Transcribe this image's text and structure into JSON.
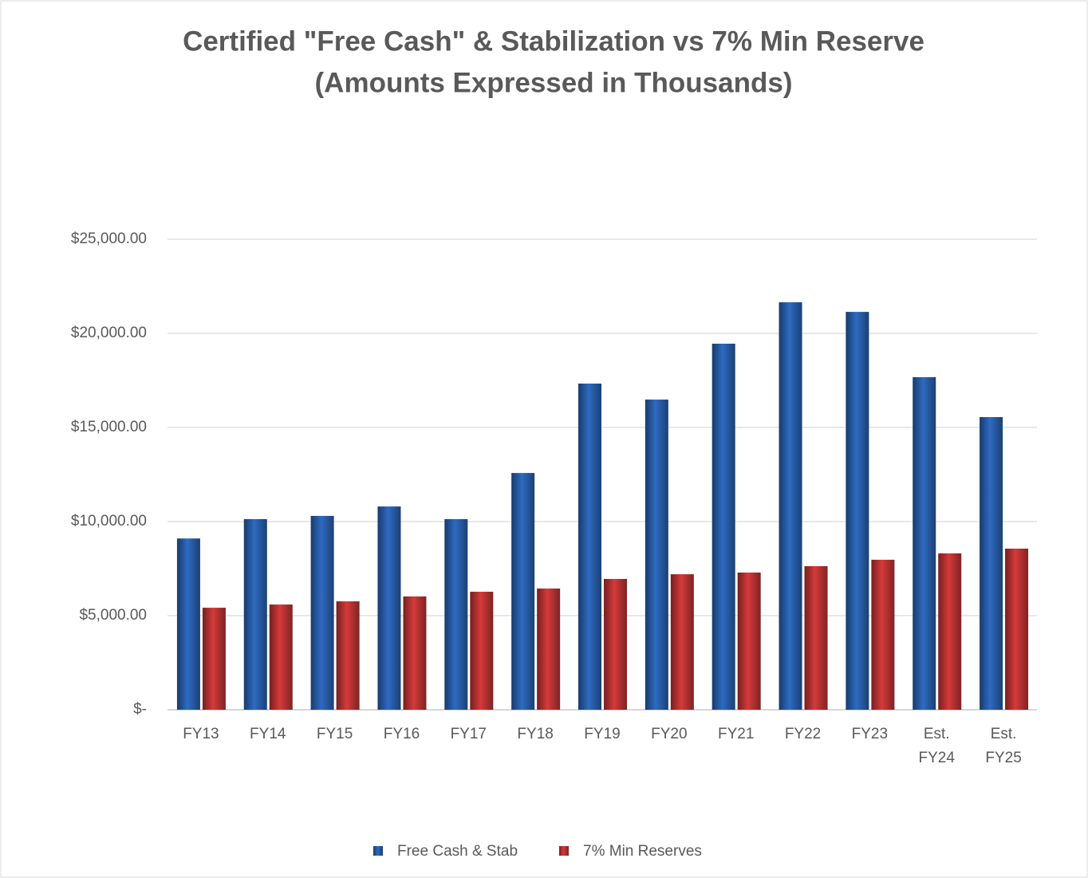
{
  "chart_data": {
    "type": "bar",
    "title": "Certified \"Free Cash\" & Stabilization  vs 7% Min Reserve",
    "subtitle": "(Amounts Expressed in Thousands)",
    "categories": [
      "FY13",
      "FY14",
      "FY15",
      "FY16",
      "FY17",
      "FY18",
      "FY19",
      "FY20",
      "FY21",
      "FY22",
      "FY23",
      "Est. FY24",
      "Est. FY25"
    ],
    "series": [
      {
        "name": "Free Cash & Stab",
        "color": "#2e6bc2",
        "values": [
          9100,
          10130,
          10300,
          10800,
          10130,
          12580,
          17330,
          16480,
          19450,
          21650,
          21140,
          17670,
          15550
        ]
      },
      {
        "name": "7% Min Reserves",
        "color": "#d63a3a",
        "values": [
          5420,
          5590,
          5760,
          6020,
          6270,
          6440,
          6950,
          7200,
          7290,
          7630,
          7970,
          8310,
          8560
        ]
      }
    ],
    "ylim": [
      0,
      25000
    ],
    "yticks": [
      {
        "value": 0,
        "label": "$-"
      },
      {
        "value": 5000,
        "label": "$5,000.00"
      },
      {
        "value": 10000,
        "label": "$10,000.00"
      },
      {
        "value": 15000,
        "label": "$15,000.00"
      },
      {
        "value": 20000,
        "label": "$20,000.00"
      },
      {
        "value": 25000,
        "label": "$25,000.00"
      }
    ],
    "grid": true,
    "legend": "bottom"
  }
}
